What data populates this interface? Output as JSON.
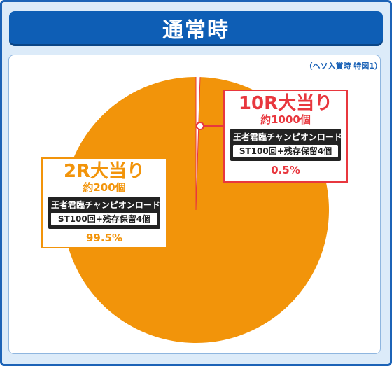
{
  "header": {
    "title": "通常時"
  },
  "chart_note": "（ヘソ入賞時 特図1）",
  "colors": {
    "frame": "#1c63b7",
    "background": "#dcebf9",
    "large_slice": "#f2940a",
    "small_slice": "#ffffff",
    "small_accent": "#e8373e",
    "info_box": "#222222"
  },
  "chart_data": {
    "type": "pie",
    "title": "通常時",
    "subtitle": "（ヘソ入賞時 特図1）",
    "slices": [
      {
        "label": "10R大当り",
        "sub_label": "約1000個",
        "route": "王者君臨チャンピオンロード",
        "detail": "ST100回+残存保留4個",
        "percent_label": "0.5%",
        "value": 0.5
      },
      {
        "label": "2R大当り",
        "sub_label": "約200個",
        "route": "王者君臨チャンピオンロード",
        "detail": "ST100回+残存保留4個",
        "percent_label": "99.5%",
        "value": 99.5
      }
    ]
  }
}
